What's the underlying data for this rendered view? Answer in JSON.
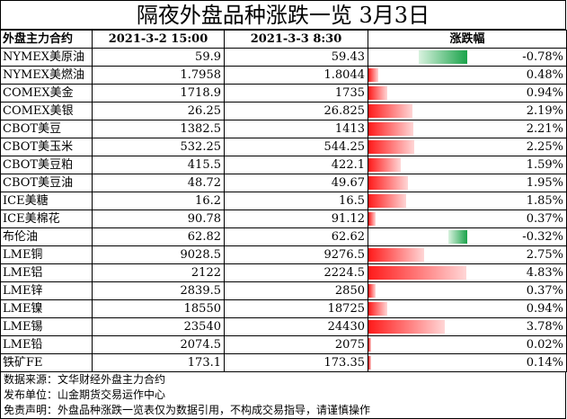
{
  "title": "隔夜外盘品种涨跌一览 3月3日",
  "headers": [
    "外盘主力合约",
    "2021-3-2 15:00",
    "2021-3-3 8:30",
    "涨跌幅"
  ],
  "rows": [
    {
      "name": "NYMEX美原油",
      "prev": "59.9",
      "curr": "59.43",
      "chg": "-0.78%",
      "pct": -0.78
    },
    {
      "name": "NYMEX美燃油",
      "prev": "1.7958",
      "curr": "1.8044",
      "chg": "0.48%",
      "pct": 0.48
    },
    {
      "name": "COMEX美金",
      "prev": "1718.9",
      "curr": "1735",
      "chg": "0.94%",
      "pct": 0.94
    },
    {
      "name": "COMEX美银",
      "prev": "26.25",
      "curr": "26.825",
      "chg": "2.19%",
      "pct": 2.19
    },
    {
      "name": "CBOT美豆",
      "prev": "1382.5",
      "curr": "1413",
      "chg": "2.21%",
      "pct": 2.21
    },
    {
      "name": "CBOT美玉米",
      "prev": "532.25",
      "curr": "544.25",
      "chg": "2.25%",
      "pct": 2.25
    },
    {
      "name": "CBOT美豆粕",
      "prev": "415.5",
      "curr": "422.1",
      "chg": "1.59%",
      "pct": 1.59
    },
    {
      "name": "CBOT美豆油",
      "prev": "48.72",
      "curr": "49.67",
      "chg": "1.95%",
      "pct": 1.95
    },
    {
      "name": "ICE美糖",
      "prev": "16.2",
      "curr": "16.5",
      "chg": "1.85%",
      "pct": 1.85
    },
    {
      "name": "ICE美棉花",
      "prev": "90.78",
      "curr": "91.12",
      "chg": "0.37%",
      "pct": 0.37
    },
    {
      "name": "布伦油",
      "prev": "62.82",
      "curr": "62.62",
      "chg": "-0.32%",
      "pct": -0.32
    },
    {
      "name": "LME铜",
      "prev": "9028.5",
      "curr": "9276.5",
      "chg": "2.75%",
      "pct": 2.75
    },
    {
      "name": "LME铝",
      "prev": "2122",
      "curr": "2224.5",
      "chg": "4.83%",
      "pct": 4.83
    },
    {
      "name": "LME锌",
      "prev": "2839.5",
      "curr": "2850",
      "chg": "0.37%",
      "pct": 0.37
    },
    {
      "name": "LME镍",
      "prev": "18550",
      "curr": "18725",
      "chg": "0.94%",
      "pct": 0.94
    },
    {
      "name": "LME锡",
      "prev": "23540",
      "curr": "24430",
      "chg": "3.78%",
      "pct": 3.78
    },
    {
      "name": "LME铅",
      "prev": "2074.5",
      "curr": "2075",
      "chg": "0.02%",
      "pct": 0.02
    },
    {
      "name": "铁矿FE",
      "prev": "173.1",
      "curr": "173.35",
      "chg": "0.14%",
      "pct": 0.14
    }
  ],
  "footer": [
    "数据来源：文华财经外盘主力合约",
    "发布单位：山金期货交易运作中心",
    "免责声明：外盘品种涨跌一览表仅为数据引用，不构成交易指导，请谨慎操作"
  ],
  "colors": {
    "up": "#ff1a1a",
    "down": "#1aa34a"
  }
}
